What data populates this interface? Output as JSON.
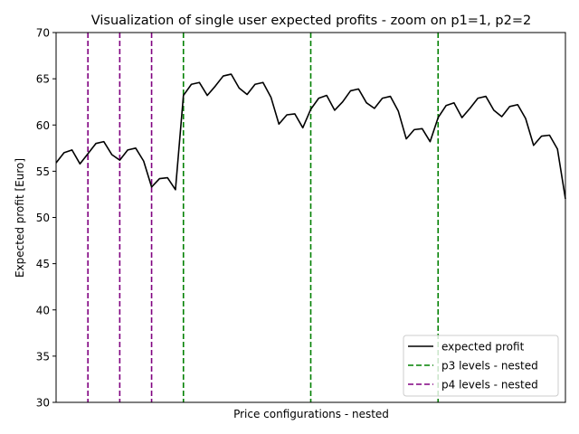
{
  "chart_data": {
    "type": "line",
    "title": "Visualization of single user expected profits - zoom on p1=1, p2=2",
    "xlabel": "Price configurations - nested",
    "ylabel": "Expected profit [Euro]",
    "ylim": [
      30,
      70
    ],
    "xlim": [
      0,
      64
    ],
    "yticks": [
      30,
      35,
      40,
      45,
      50,
      55,
      60,
      65,
      70
    ],
    "x_tick_labels_shown": false,
    "grid": false,
    "legend_position": "lower right",
    "series": [
      {
        "name": "expected profit",
        "color": "#000000",
        "style": "solid",
        "x": [
          0,
          1,
          2,
          3,
          4,
          5,
          6,
          7,
          8,
          9,
          10,
          11,
          12,
          13,
          14,
          15,
          16,
          17,
          18,
          19,
          20,
          21,
          22,
          23,
          24,
          25,
          26,
          27,
          28,
          29,
          30,
          31,
          32,
          33,
          34,
          35,
          36,
          37,
          38,
          39,
          40,
          41,
          42,
          43,
          44,
          45,
          46,
          47,
          48,
          49,
          50,
          51,
          52,
          53,
          54,
          55,
          56,
          57,
          58,
          59,
          60,
          61,
          62,
          63,
          64
        ],
        "y": [
          55.9,
          57.0,
          57.3,
          55.8,
          56.9,
          58.0,
          58.2,
          56.8,
          56.2,
          57.3,
          57.5,
          56.1,
          53.3,
          54.2,
          54.3,
          53.0,
          63.2,
          64.4,
          64.6,
          63.2,
          64.2,
          65.3,
          65.5,
          64.0,
          63.3,
          64.4,
          64.6,
          63.0,
          60.1,
          61.1,
          61.2,
          59.7,
          61.7,
          62.9,
          63.2,
          61.6,
          62.5,
          63.7,
          63.9,
          62.4,
          61.8,
          62.9,
          63.1,
          61.5,
          58.5,
          59.5,
          59.6,
          58.2,
          60.8,
          62.1,
          62.4,
          60.8,
          61.8,
          62.9,
          63.1,
          61.6,
          60.9,
          62.0,
          62.2,
          60.7,
          57.8,
          58.8,
          58.9,
          57.4,
          52.0
        ]
      }
    ],
    "vlines": [
      {
        "name": "p3 levels - nested",
        "color": "#008000",
        "style": "dashed",
        "x": [
          16,
          32,
          48
        ]
      },
      {
        "name": "p4 levels - nested",
        "color": "#800080",
        "style": "dashed",
        "x": [
          4,
          8,
          12
        ]
      }
    ]
  }
}
